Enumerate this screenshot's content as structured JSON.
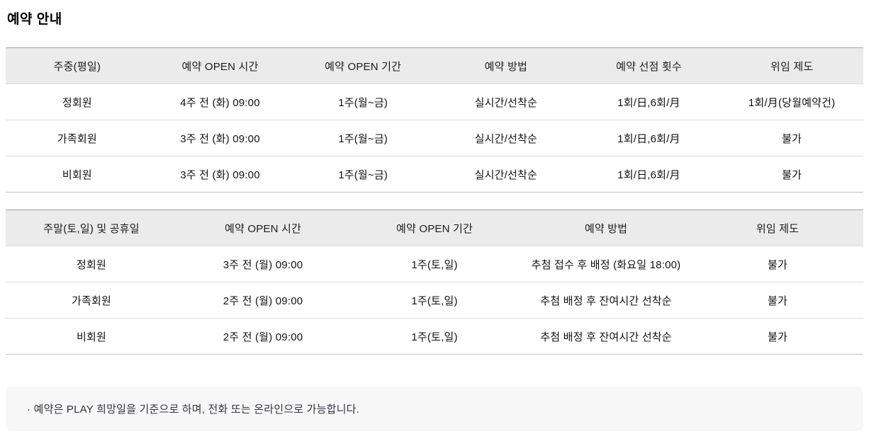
{
  "page": {
    "title": "예약 안내"
  },
  "weekday_table": {
    "headers": [
      "주중(평일)",
      "예약 OPEN 시간",
      "예약 OPEN 기간",
      "예약 방법",
      "예약 선점 횟수",
      "위임 제도"
    ],
    "rows": [
      [
        "정회원",
        "4주 전 (화) 09:00",
        "1주(월~금)",
        "실시간/선착순",
        "1회/日,6회/月",
        "1회/月(당월예약건)"
      ],
      [
        "가족회원",
        "3주 전 (화) 09:00",
        "1주(월~금)",
        "실시간/선착순",
        "1회/日,6회/月",
        "불가"
      ],
      [
        "비회원",
        "3주 전 (화) 09:00",
        "1주(월~금)",
        "실시간/선착순",
        "1회/日,6회/月",
        "불가"
      ]
    ]
  },
  "weekend_table": {
    "headers": [
      "주말(토,일) 및 공휴일",
      "예약 OPEN 시간",
      "예약 OPEN 기간",
      "예약 방법",
      "위임 제도"
    ],
    "rows": [
      [
        "정회원",
        "3주 전 (월) 09:00",
        "1주(토,일)",
        "추첨 접수 후 배정 (화요일 18:00)",
        "불가"
      ],
      [
        "가족회원",
        "2주 전 (월) 09:00",
        "1주(토,일)",
        "추첨 배정 후 잔여시간 선착순",
        "불가"
      ],
      [
        "비회원",
        "2주 전 (월) 09:00",
        "1주(토,일)",
        "추첨 배정 후 잔여시간 선착순",
        "불가"
      ]
    ]
  },
  "note": {
    "text": "· 예약은 PLAY 희망일을 기준으로 하며, 전화 또는 온라인으로 가능합니다."
  },
  "colors": {
    "header_bg": "#ebebeb",
    "table_top_border": "#a3a3a3",
    "row_border": "#dcdcdc",
    "note_bg": "#f7f7f8",
    "text": "#111111",
    "note_text": "#33353d"
  }
}
